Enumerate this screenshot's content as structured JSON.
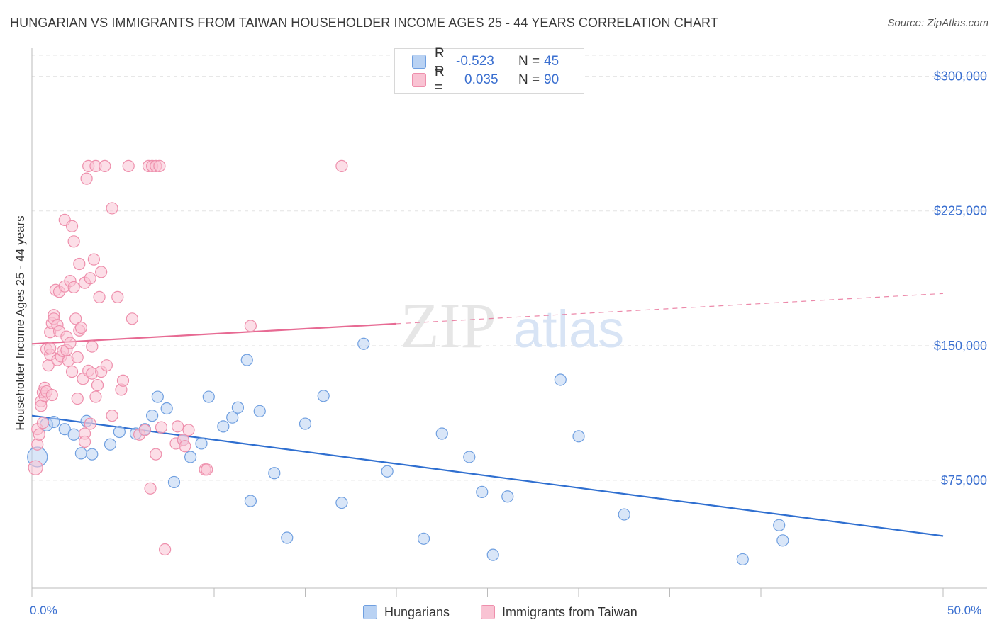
{
  "title": "HUNGARIAN VS IMMIGRANTS FROM TAIWAN HOUSEHOLDER INCOME AGES 25 - 44 YEARS CORRELATION CHART",
  "source": "Source: ZipAtlas.com",
  "watermark": {
    "zip": "ZIP",
    "atlas": "atlas"
  },
  "legend": {
    "rows": [
      {
        "r_label": "R =",
        "r_value": "-0.523",
        "n_label": "N =",
        "n_value": "45",
        "fill": "#b9d2f3",
        "stroke": "#6f9fe0"
      },
      {
        "r_label": "R =",
        "r_value": "0.035",
        "n_label": "N =",
        "n_value": "90",
        "fill": "#f9c3d3",
        "stroke": "#ee8fac"
      }
    ]
  },
  "bottom_legend": {
    "series_a": "Hungarians",
    "series_b": "Immigrants from Taiwan"
  },
  "chart_data": {
    "type": "scatter",
    "title": "HUNGARIAN VS IMMIGRANTS FROM TAIWAN HOUSEHOLDER INCOME AGES 25 - 44 YEARS CORRELATION CHART",
    "xlabel": "",
    "ylabel": "Householder Income Ages 25 - 44 years",
    "xlim": [
      0,
      50
    ],
    "ylim": [
      15000,
      318000
    ],
    "x_tick_labels": [
      "0.0%",
      "50.0%"
    ],
    "y_ticks": [
      75000,
      150000,
      225000,
      300000
    ],
    "y_tick_labels": [
      "$75,000",
      "$150,000",
      "$225,000",
      "$300,000"
    ],
    "grid": true,
    "colors": {
      "blue": "#6f9fe0",
      "blue_fill": "#b9d2f3",
      "blue_line": "#2f6fd0",
      "pink": "#ee8fac",
      "pink_fill": "#f9c3d3",
      "pink_line": "#e76a93"
    },
    "series": [
      {
        "name": "Hungarians",
        "r": -0.523,
        "n": 45,
        "trend": {
          "x0": 0,
          "y0": 111000,
          "x1": 50,
          "y1": 44000,
          "dashed_from": null
        },
        "points": [
          [
            0.3,
            88000,
            14
          ],
          [
            0.8,
            106000,
            9
          ],
          [
            1.2,
            107500,
            8
          ],
          [
            1.8,
            103500,
            8
          ],
          [
            2.3,
            100500,
            8
          ],
          [
            2.7,
            90000,
            8
          ],
          [
            3.0,
            108000,
            8
          ],
          [
            3.3,
            89500,
            8
          ],
          [
            4.3,
            95000,
            8
          ],
          [
            4.8,
            102000,
            8
          ],
          [
            5.7,
            101000,
            8
          ],
          [
            6.2,
            103500,
            8
          ],
          [
            6.6,
            111000,
            8
          ],
          [
            6.9,
            121500,
            8
          ],
          [
            7.4,
            115000,
            8
          ],
          [
            7.8,
            74000,
            8
          ],
          [
            8.3,
            97500,
            8
          ],
          [
            8.7,
            88000,
            8
          ],
          [
            9.3,
            95500,
            8
          ],
          [
            9.7,
            121500,
            8
          ],
          [
            10.5,
            105000,
            8
          ],
          [
            11.0,
            110000,
            8
          ],
          [
            11.3,
            115500,
            8
          ],
          [
            11.8,
            142000,
            8
          ],
          [
            12.0,
            63500,
            8
          ],
          [
            12.5,
            113500,
            8
          ],
          [
            13.3,
            79000,
            8
          ],
          [
            14.0,
            43000,
            8
          ],
          [
            15.0,
            106500,
            8
          ],
          [
            16.0,
            122000,
            8
          ],
          [
            17.0,
            62500,
            8
          ],
          [
            18.2,
            151000,
            8
          ],
          [
            19.5,
            80000,
            8
          ],
          [
            21.5,
            42500,
            8
          ],
          [
            22.5,
            101000,
            8
          ],
          [
            24.0,
            88000,
            8
          ],
          [
            24.7,
            68500,
            8
          ],
          [
            25.3,
            33500,
            8
          ],
          [
            26.1,
            66000,
            8
          ],
          [
            29.0,
            131000,
            8
          ],
          [
            30.0,
            99500,
            8
          ],
          [
            32.5,
            56000,
            8
          ],
          [
            39.0,
            31000,
            8
          ],
          [
            41.0,
            50000,
            8
          ],
          [
            41.2,
            41500,
            8
          ]
        ]
      },
      {
        "name": "Immigrants from Taiwan",
        "r": 0.035,
        "n": 90,
        "trend": {
          "x0": 0,
          "y0": 151000,
          "x1": 50,
          "y1": 179000,
          "dashed_from": 20
        },
        "points": [
          [
            0.2,
            82000,
            10
          ],
          [
            0.3,
            95000,
            8
          ],
          [
            0.3,
            103500,
            8
          ],
          [
            0.4,
            100500,
            8
          ],
          [
            0.5,
            119000,
            8
          ],
          [
            0.5,
            116500,
            8
          ],
          [
            0.6,
            107000,
            8
          ],
          [
            0.6,
            124000,
            8
          ],
          [
            0.7,
            122000,
            8
          ],
          [
            0.7,
            126500,
            8
          ],
          [
            0.8,
            148000,
            8
          ],
          [
            0.8,
            124500,
            8
          ],
          [
            0.9,
            139000,
            8
          ],
          [
            1.0,
            145000,
            8
          ],
          [
            1.0,
            157500,
            8
          ],
          [
            1.0,
            148500,
            8
          ],
          [
            1.1,
            122500,
            8
          ],
          [
            1.1,
            162500,
            8
          ],
          [
            1.2,
            167000,
            8
          ],
          [
            1.2,
            165000,
            8
          ],
          [
            1.3,
            181000,
            8
          ],
          [
            1.4,
            142000,
            8
          ],
          [
            1.4,
            161500,
            8
          ],
          [
            1.5,
            158000,
            8
          ],
          [
            1.5,
            180000,
            8
          ],
          [
            1.6,
            144000,
            8
          ],
          [
            1.7,
            147000,
            8
          ],
          [
            1.8,
            183000,
            8
          ],
          [
            1.8,
            220000,
            8
          ],
          [
            1.9,
            155000,
            8
          ],
          [
            1.9,
            147500,
            8
          ],
          [
            2.0,
            141500,
            8
          ],
          [
            2.1,
            151500,
            8
          ],
          [
            2.1,
            186000,
            8
          ],
          [
            2.2,
            216500,
            8
          ],
          [
            2.2,
            135500,
            8
          ],
          [
            2.3,
            208000,
            8
          ],
          [
            2.3,
            182500,
            8
          ],
          [
            2.4,
            165000,
            8
          ],
          [
            2.5,
            120500,
            8
          ],
          [
            2.5,
            143500,
            8
          ],
          [
            2.6,
            158500,
            8
          ],
          [
            2.6,
            195500,
            8
          ],
          [
            2.7,
            160000,
            8
          ],
          [
            2.8,
            131500,
            8
          ],
          [
            2.9,
            185000,
            8
          ],
          [
            2.9,
            101000,
            8
          ],
          [
            2.9,
            96500,
            8
          ],
          [
            3.0,
            243000,
            8
          ],
          [
            3.1,
            250000,
            8
          ],
          [
            3.1,
            136000,
            8
          ],
          [
            3.2,
            106500,
            8
          ],
          [
            3.2,
            187500,
            8
          ],
          [
            3.3,
            149500,
            8
          ],
          [
            3.3,
            134500,
            8
          ],
          [
            3.4,
            198000,
            8
          ],
          [
            3.5,
            121500,
            8
          ],
          [
            3.5,
            250000,
            8
          ],
          [
            3.6,
            128000,
            8
          ],
          [
            3.7,
            177000,
            8
          ],
          [
            3.8,
            191000,
            8
          ],
          [
            3.8,
            135500,
            8
          ],
          [
            4.0,
            250000,
            8
          ],
          [
            4.1,
            139000,
            8
          ],
          [
            4.4,
            226500,
            8
          ],
          [
            4.4,
            111000,
            8
          ],
          [
            4.7,
            177000,
            8
          ],
          [
            4.9,
            125500,
            8
          ],
          [
            5.0,
            130500,
            8
          ],
          [
            5.3,
            250000,
            8
          ],
          [
            5.5,
            165000,
            8
          ],
          [
            5.9,
            100500,
            8
          ],
          [
            6.2,
            103000,
            8
          ],
          [
            6.4,
            250000,
            8
          ],
          [
            6.5,
            70500,
            8
          ],
          [
            6.6,
            250000,
            8
          ],
          [
            6.8,
            89500,
            8
          ],
          [
            6.8,
            250000,
            8
          ],
          [
            7.0,
            250000,
            8
          ],
          [
            7.1,
            104500,
            8
          ],
          [
            7.3,
            36500,
            8
          ],
          [
            7.9,
            95500,
            8
          ],
          [
            8.0,
            105000,
            8
          ],
          [
            8.3,
            97500,
            8
          ],
          [
            8.4,
            94000,
            8
          ],
          [
            8.6,
            103000,
            8
          ],
          [
            9.5,
            81000,
            8
          ],
          [
            9.6,
            81000,
            8
          ],
          [
            12.0,
            161000,
            8
          ],
          [
            17.0,
            250000,
            8
          ]
        ]
      }
    ]
  }
}
